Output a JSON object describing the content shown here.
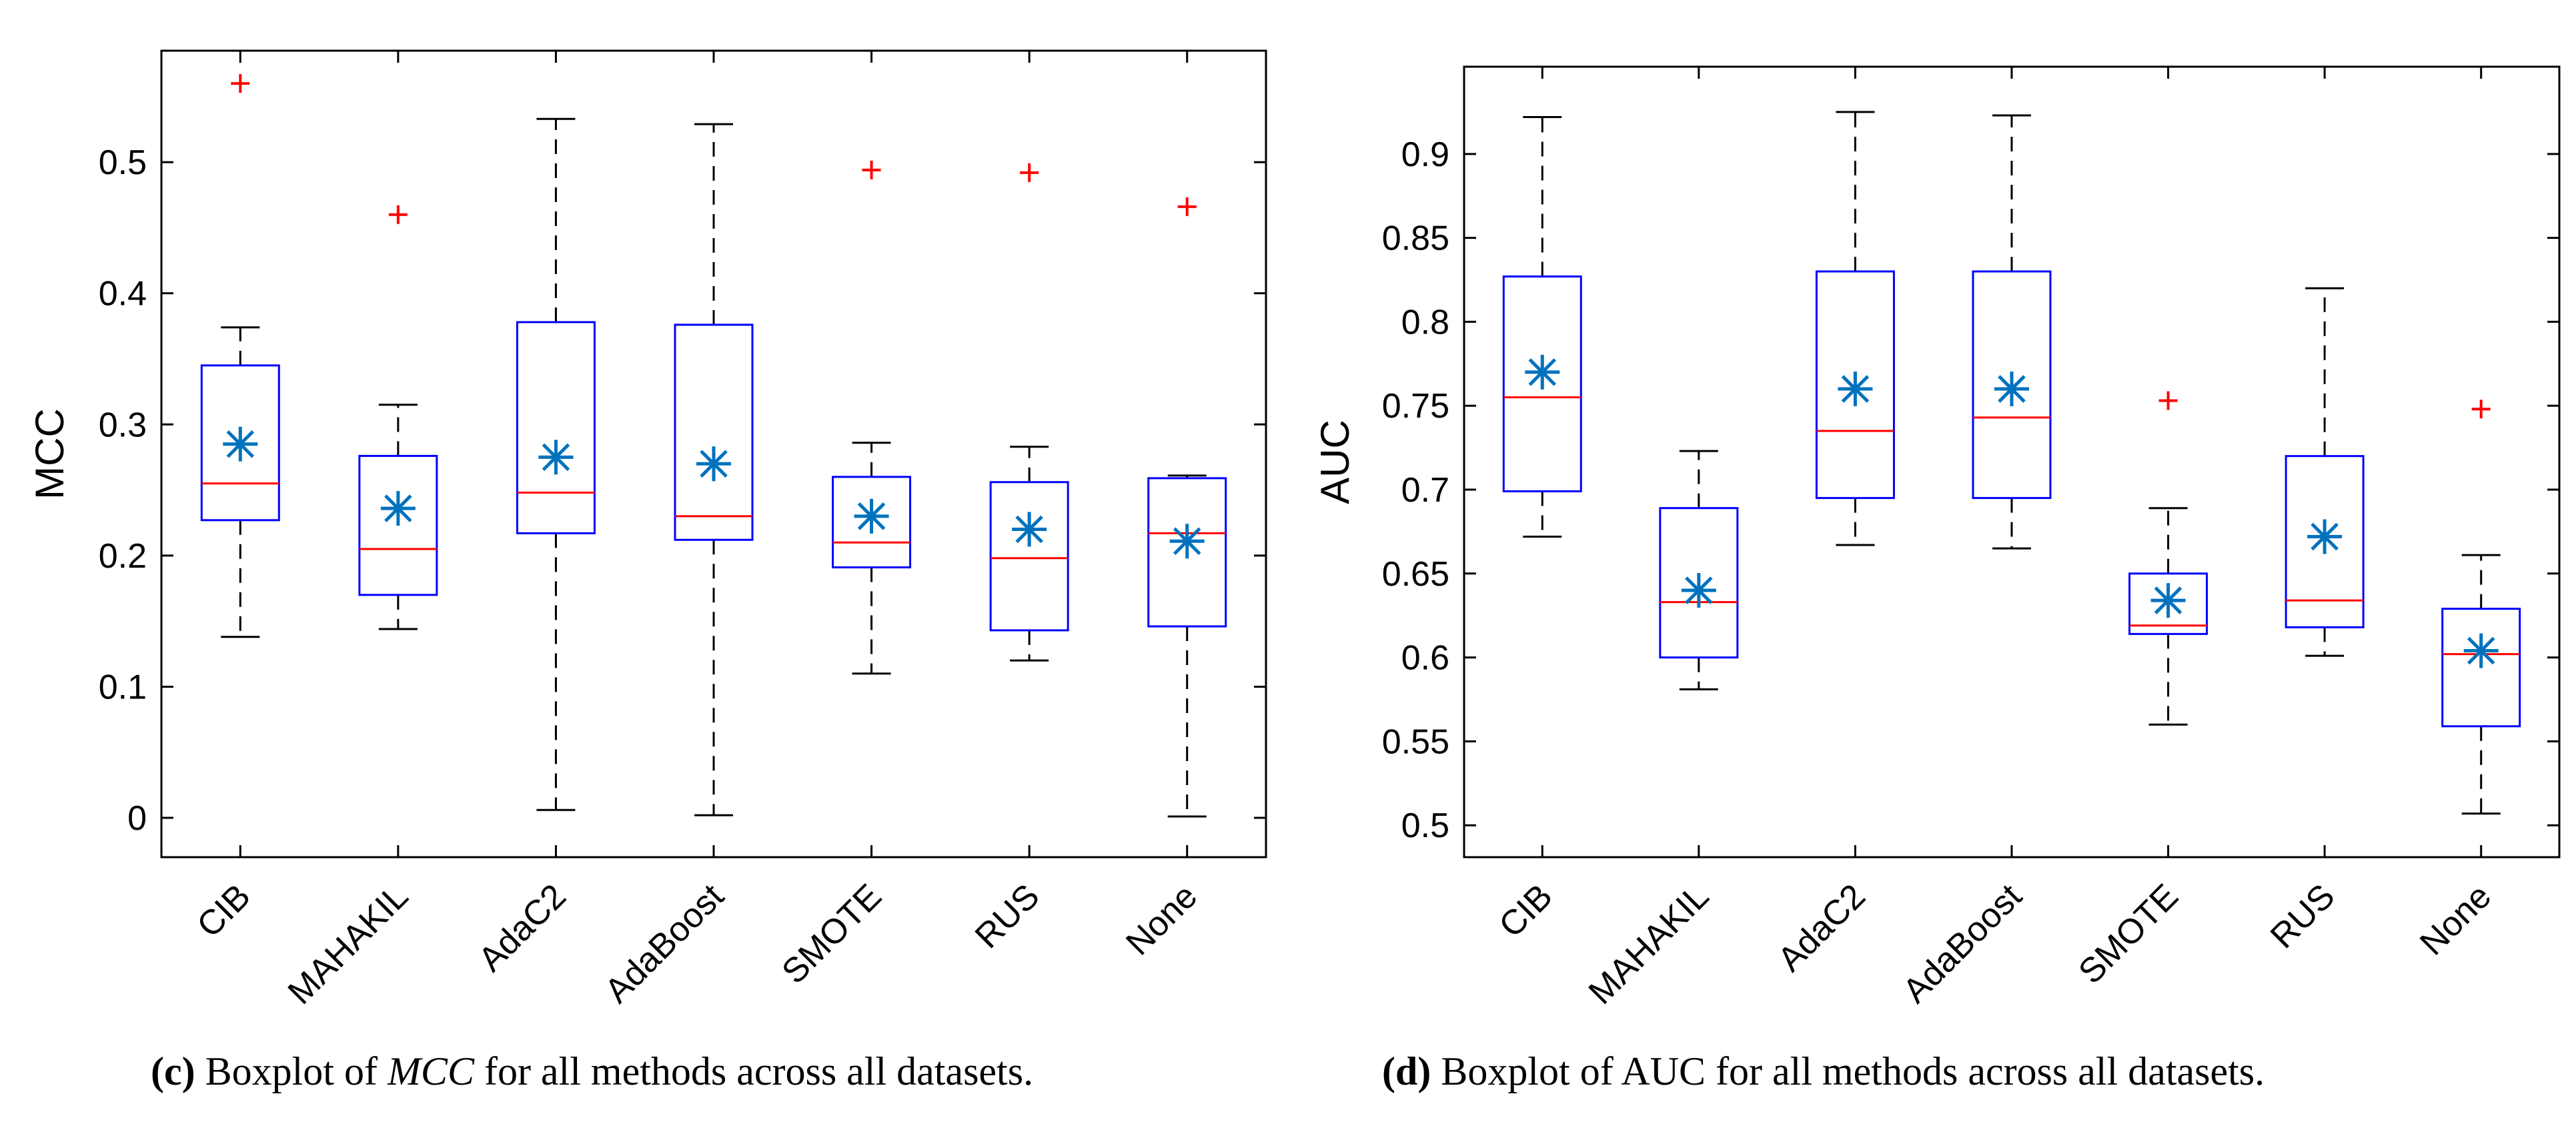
{
  "chart_data": [
    {
      "type": "boxplot",
      "panel": "c",
      "ylabel": "MCC",
      "ylim": [
        -0.03,
        0.585
      ],
      "yticks": [
        0,
        0.1,
        0.2,
        0.3,
        0.4,
        0.5
      ],
      "categories": [
        "CIB",
        "MAHAKIL",
        "AdaC2",
        "AdaBoost",
        "SMOTE",
        "RUS",
        "None"
      ],
      "boxes": [
        {
          "category": "CIB",
          "whisker_low": 0.138,
          "q1": 0.227,
          "median": 0.255,
          "q3": 0.345,
          "whisker_high": 0.374,
          "mean": 0.285,
          "outliers": [
            0.56
          ]
        },
        {
          "category": "MAHAKIL",
          "whisker_low": 0.144,
          "q1": 0.17,
          "median": 0.205,
          "q3": 0.276,
          "whisker_high": 0.315,
          "mean": 0.236,
          "outliers": [
            0.46
          ]
        },
        {
          "category": "AdaC2",
          "whisker_low": 0.006,
          "q1": 0.217,
          "median": 0.248,
          "q3": 0.378,
          "whisker_high": 0.533,
          "mean": 0.275,
          "outliers": []
        },
        {
          "category": "AdaBoost",
          "whisker_low": 0.002,
          "q1": 0.212,
          "median": 0.23,
          "q3": 0.376,
          "whisker_high": 0.529,
          "mean": 0.27,
          "outliers": []
        },
        {
          "category": "SMOTE",
          "whisker_low": 0.11,
          "q1": 0.191,
          "median": 0.21,
          "q3": 0.26,
          "whisker_high": 0.286,
          "mean": 0.23,
          "outliers": [
            0.494
          ]
        },
        {
          "category": "RUS",
          "whisker_low": 0.12,
          "q1": 0.143,
          "median": 0.198,
          "q3": 0.256,
          "whisker_high": 0.283,
          "mean": 0.22,
          "outliers": [
            0.492
          ]
        },
        {
          "category": "None",
          "whisker_low": 0.001,
          "q1": 0.146,
          "median": 0.217,
          "q3": 0.259,
          "whisker_high": 0.261,
          "mean": 0.211,
          "outliers": [
            0.466
          ]
        }
      ]
    },
    {
      "type": "boxplot",
      "panel": "d",
      "ylabel": "AUC",
      "ylim": [
        0.481,
        0.952
      ],
      "yticks": [
        0.5,
        0.55,
        0.6,
        0.65,
        0.7,
        0.75,
        0.8,
        0.85,
        0.9
      ],
      "categories": [
        "CIB",
        "MAHAKIL",
        "AdaC2",
        "AdaBoost",
        "SMOTE",
        "RUS",
        "None"
      ],
      "boxes": [
        {
          "category": "CIB",
          "whisker_low": 0.672,
          "q1": 0.699,
          "median": 0.755,
          "q3": 0.827,
          "whisker_high": 0.922,
          "mean": 0.77,
          "outliers": []
        },
        {
          "category": "MAHAKIL",
          "whisker_low": 0.581,
          "q1": 0.6,
          "median": 0.633,
          "q3": 0.689,
          "whisker_high": 0.723,
          "mean": 0.64,
          "outliers": []
        },
        {
          "category": "AdaC2",
          "whisker_low": 0.667,
          "q1": 0.695,
          "median": 0.735,
          "q3": 0.83,
          "whisker_high": 0.925,
          "mean": 0.76,
          "outliers": []
        },
        {
          "category": "AdaBoost",
          "whisker_low": 0.665,
          "q1": 0.695,
          "median": 0.743,
          "q3": 0.83,
          "whisker_high": 0.923,
          "mean": 0.76,
          "outliers": []
        },
        {
          "category": "SMOTE",
          "whisker_low": 0.56,
          "q1": 0.614,
          "median": 0.619,
          "q3": 0.65,
          "whisker_high": 0.689,
          "mean": 0.634,
          "outliers": [
            0.753
          ]
        },
        {
          "category": "RUS",
          "whisker_low": 0.601,
          "q1": 0.618,
          "median": 0.634,
          "q3": 0.72,
          "whisker_high": 0.82,
          "mean": 0.672,
          "outliers": []
        },
        {
          "category": "None",
          "whisker_low": 0.507,
          "q1": 0.559,
          "median": 0.602,
          "q3": 0.629,
          "whisker_high": 0.661,
          "mean": 0.604,
          "outliers": [
            0.748
          ]
        }
      ]
    }
  ],
  "captions": {
    "c": {
      "label": "(c)",
      "pre": "Boxplot of ",
      "metric": "MCC",
      "post": " for all methods across all datasets."
    },
    "d": {
      "label": "(d)",
      "pre": "Boxplot of ",
      "metric": "AUC",
      "post": " for all methods across all datasets."
    }
  },
  "colors": {
    "box": "#0000ff",
    "median": "#ff0000",
    "outlier": "#ff0000",
    "mean": "#0072bd",
    "whisker": "#000000"
  }
}
